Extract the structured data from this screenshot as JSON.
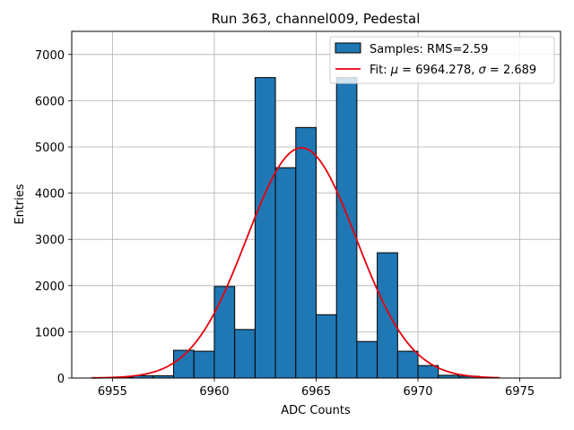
{
  "chart_data": {
    "type": "bar",
    "title": "Run 363, channel009, Pedestal",
    "xlabel": "ADC Counts",
    "ylabel": "Entries",
    "xlim": [
      6953,
      6977
    ],
    "ylim": [
      0,
      7500
    ],
    "xticks": [
      6955,
      6960,
      6965,
      6970,
      6975
    ],
    "yticks": [
      0,
      1000,
      2000,
      3000,
      4000,
      5000,
      6000,
      7000
    ],
    "grid": true,
    "legend_position": "top-right",
    "colors": {
      "bar_fill": "#1f77b4",
      "bar_edge": "#000000",
      "fit_line": "#e8000b",
      "grid": "#b0b0b0"
    },
    "histogram": {
      "name": "Samples: RMS=2.59",
      "bin_edges": [
        6954,
        6955,
        6956,
        6957,
        6958,
        6959,
        6960,
        6961,
        6962,
        6963,
        6964,
        6965,
        6966,
        6967,
        6968,
        6969,
        6970,
        6971,
        6972,
        6973,
        6974
      ],
      "values": [
        10,
        20,
        50,
        50,
        600,
        580,
        1980,
        1050,
        6500,
        4550,
        5420,
        1370,
        6500,
        790,
        2710,
        580,
        270,
        60,
        40,
        10
      ]
    },
    "fit": {
      "name": "Fit: μ = 6964.278, σ = 2.689",
      "legend_prefix": "Fit: ",
      "mu": 6964.278,
      "sigma": 2.689,
      "amplitude": 4980,
      "x_range": [
        6954,
        6974
      ]
    }
  }
}
